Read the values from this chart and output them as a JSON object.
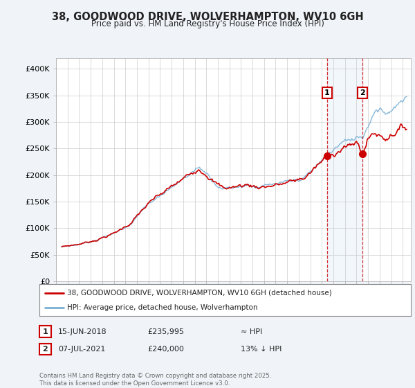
{
  "title_line1": "38, GOODWOOD DRIVE, WOLVERHAMPTON, WV10 6GH",
  "title_line2": "Price paid vs. HM Land Registry's House Price Index (HPI)",
  "ylabel_ticks": [
    "£0",
    "£50K",
    "£100K",
    "£150K",
    "£200K",
    "£250K",
    "£300K",
    "£350K",
    "£400K"
  ],
  "ytick_values": [
    0,
    50000,
    100000,
    150000,
    200000,
    250000,
    300000,
    350000,
    400000
  ],
  "ylim": [
    0,
    420000
  ],
  "xlim_start": 1995.3,
  "xlim_end": 2025.7,
  "sale1_date": 2018.45,
  "sale1_price": 235995,
  "sale2_date": 2021.52,
  "sale2_price": 240000,
  "legend_line1": "38, GOODWOOD DRIVE, WOLVERHAMPTON, WV10 6GH (detached house)",
  "legend_line2": "HPI: Average price, detached house, Wolverhampton",
  "sale1_text": "15-JUN-2018",
  "sale1_price_text": "£235,995",
  "sale1_hpi_text": "≈ HPI",
  "sale2_text": "07-JUL-2021",
  "sale2_price_text": "£240,000",
  "sale2_hpi_text": "13% ↓ HPI",
  "footer": "Contains HM Land Registry data © Crown copyright and database right 2025.\nThis data is licensed under the Open Government Licence v3.0.",
  "hpi_color": "#7ab0d4",
  "sale_color": "#cc0000",
  "background_color": "#f0f4f8",
  "plot_bg_color": "#ffffff",
  "shade_color": "#ddeeff",
  "grid_color": "#cccccc",
  "sale1_label": "1",
  "sale2_label": "2"
}
